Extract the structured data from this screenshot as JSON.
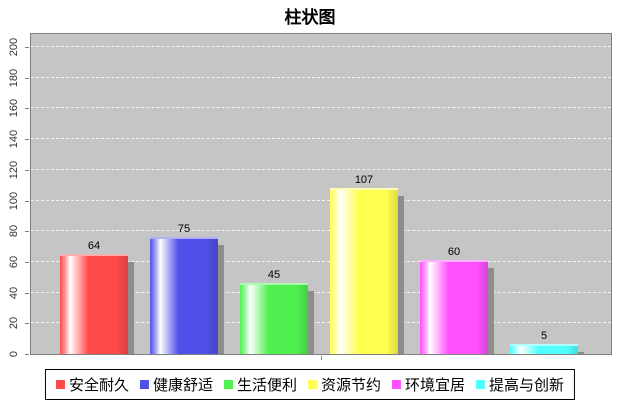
{
  "chart_data": {
    "type": "bar",
    "title": "柱状图",
    "categories": [
      "安全耐久",
      "健康舒适",
      "生活便利",
      "资源节约",
      "环境宜居",
      "提高与创新"
    ],
    "values": [
      64,
      75,
      45,
      107,
      60,
      5
    ],
    "series_colors": [
      "#ff4a4a",
      "#5050e8",
      "#50f050",
      "#ffff50",
      "#ff50ff",
      "#50ffff"
    ],
    "value_labels": [
      "64",
      "75",
      "45",
      "107",
      "60",
      "5"
    ],
    "ylim": [
      0,
      200
    ],
    "yticks": [
      0,
      20,
      40,
      60,
      80,
      100,
      120,
      140,
      160,
      180,
      200
    ],
    "grid": "horizontal-dashed-white",
    "plot_background": "#c5c5c5",
    "legend_position": "bottom",
    "legend": [
      "安全耐久",
      "健康舒适",
      "生活便利",
      "资源节约",
      "环境宜居",
      "提高与创新"
    ]
  }
}
